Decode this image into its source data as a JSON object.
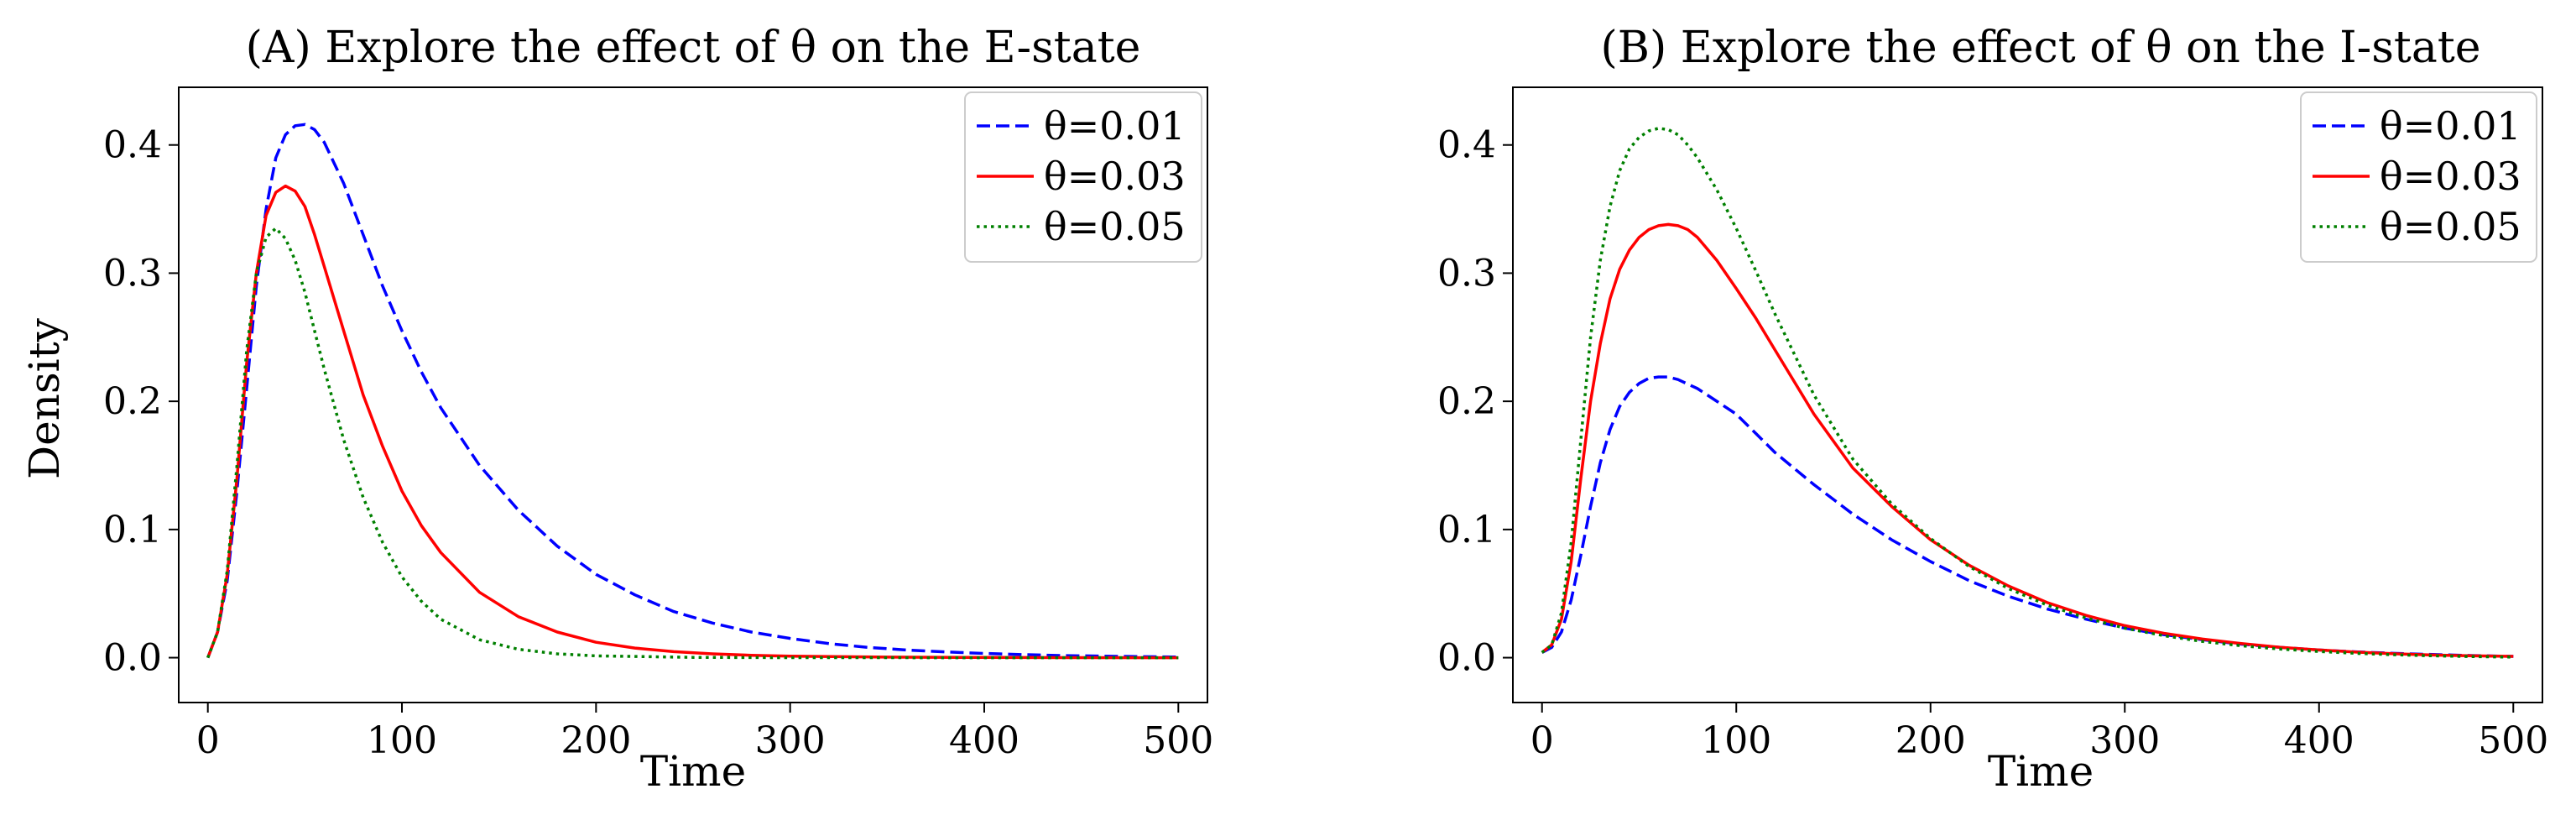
{
  "chart_data": [
    {
      "type": "line",
      "title": "(A) Explore the effect of θ on the E-state",
      "xlabel": "Time",
      "ylabel": "Density",
      "xlim": [
        -15,
        515
      ],
      "ylim": [
        -0.035,
        0.445
      ],
      "xticks": [
        0,
        100,
        200,
        300,
        400,
        500
      ],
      "xtick_labels": [
        "0",
        "100",
        "200",
        "300",
        "400",
        "500"
      ],
      "yticks": [
        0.0,
        0.1,
        0.2,
        0.3,
        0.4
      ],
      "ytick_labels": [
        "0.0",
        "0.1",
        "0.2",
        "0.3",
        "0.4"
      ],
      "legend_position": "top-right",
      "series": [
        {
          "name": "θ=0.01",
          "color": "#0000ff",
          "dash": "dashed",
          "x": [
            0,
            5,
            10,
            15,
            20,
            25,
            30,
            35,
            40,
            45,
            50,
            55,
            60,
            70,
            80,
            90,
            100,
            110,
            120,
            140,
            160,
            180,
            200,
            220,
            240,
            260,
            280,
            300,
            320,
            340,
            360,
            380,
            400,
            420,
            440,
            460,
            480,
            500
          ],
          "y": [
            0.0,
            0.02,
            0.06,
            0.13,
            0.21,
            0.29,
            0.35,
            0.39,
            0.408,
            0.415,
            0.416,
            0.412,
            0.402,
            0.37,
            0.33,
            0.29,
            0.255,
            0.223,
            0.195,
            0.15,
            0.115,
            0.087,
            0.065,
            0.049,
            0.036,
            0.027,
            0.02,
            0.015,
            0.011,
            0.008,
            0.006,
            0.0045,
            0.0033,
            0.0024,
            0.0017,
            0.0012,
            0.0008,
            0.0005
          ]
        },
        {
          "name": "θ=0.03",
          "color": "#ff0000",
          "dash": "solid",
          "x": [
            0,
            5,
            10,
            15,
            20,
            25,
            30,
            35,
            40,
            45,
            50,
            55,
            60,
            70,
            80,
            90,
            100,
            110,
            120,
            140,
            160,
            180,
            200,
            220,
            240,
            260,
            280,
            300,
            350,
            400,
            450,
            500
          ],
          "y": [
            0.0,
            0.02,
            0.065,
            0.14,
            0.23,
            0.3,
            0.345,
            0.363,
            0.368,
            0.364,
            0.352,
            0.33,
            0.305,
            0.255,
            0.205,
            0.165,
            0.13,
            0.103,
            0.082,
            0.051,
            0.032,
            0.02,
            0.012,
            0.0075,
            0.0047,
            0.003,
            0.0019,
            0.0012,
            0.0004,
            0.00015,
            5e-05,
            0.0
          ]
        },
        {
          "name": "θ=0.05",
          "color": "#008000",
          "dash": "dotted",
          "x": [
            0,
            5,
            10,
            15,
            20,
            25,
            30,
            35,
            40,
            45,
            50,
            55,
            60,
            70,
            80,
            90,
            100,
            110,
            120,
            140,
            160,
            180,
            200,
            250,
            300,
            400,
            500
          ],
          "y": [
            0.0,
            0.02,
            0.068,
            0.15,
            0.24,
            0.3,
            0.328,
            0.335,
            0.327,
            0.31,
            0.285,
            0.255,
            0.225,
            0.17,
            0.125,
            0.09,
            0.063,
            0.044,
            0.03,
            0.014,
            0.0065,
            0.003,
            0.0014,
            0.0002,
            3e-05,
            0.0,
            0.0
          ]
        }
      ]
    },
    {
      "type": "line",
      "title": "(B) Explore the effect of θ on the I-state",
      "xlabel": "Time",
      "ylabel": "",
      "xlim": [
        -15,
        515
      ],
      "ylim": [
        -0.035,
        0.445
      ],
      "xticks": [
        0,
        100,
        200,
        300,
        400,
        500
      ],
      "xtick_labels": [
        "0",
        "100",
        "200",
        "300",
        "400",
        "500"
      ],
      "yticks": [
        0.0,
        0.1,
        0.2,
        0.3,
        0.4
      ],
      "ytick_labels": [
        "0.0",
        "0.1",
        "0.2",
        "0.3",
        "0.4"
      ],
      "legend_position": "top-right",
      "series": [
        {
          "name": "θ=0.01",
          "color": "#0000ff",
          "dash": "dashed",
          "x": [
            0,
            5,
            10,
            15,
            20,
            25,
            30,
            35,
            40,
            45,
            50,
            55,
            60,
            65,
            70,
            80,
            90,
            100,
            110,
            120,
            140,
            160,
            180,
            200,
            220,
            240,
            260,
            280,
            300,
            320,
            340,
            360,
            380,
            400,
            420,
            440,
            460,
            480,
            500
          ],
          "y": [
            0.004,
            0.008,
            0.02,
            0.045,
            0.08,
            0.118,
            0.152,
            0.178,
            0.196,
            0.207,
            0.214,
            0.218,
            0.219,
            0.219,
            0.217,
            0.21,
            0.2,
            0.19,
            0.175,
            0.16,
            0.135,
            0.112,
            0.092,
            0.075,
            0.06,
            0.048,
            0.038,
            0.03,
            0.023,
            0.018,
            0.014,
            0.0105,
            0.008,
            0.006,
            0.0045,
            0.0033,
            0.0024,
            0.0016,
            0.001
          ]
        },
        {
          "name": "θ=0.03",
          "color": "#ff0000",
          "dash": "solid",
          "x": [
            0,
            5,
            10,
            15,
            20,
            25,
            30,
            35,
            40,
            45,
            50,
            55,
            60,
            65,
            70,
            75,
            80,
            90,
            100,
            110,
            120,
            140,
            160,
            180,
            200,
            220,
            240,
            260,
            280,
            300,
            320,
            340,
            360,
            380,
            400,
            420,
            440,
            460,
            480,
            500
          ],
          "y": [
            0.004,
            0.01,
            0.03,
            0.075,
            0.14,
            0.2,
            0.245,
            0.28,
            0.303,
            0.318,
            0.328,
            0.334,
            0.337,
            0.338,
            0.337,
            0.334,
            0.328,
            0.31,
            0.288,
            0.265,
            0.24,
            0.19,
            0.148,
            0.118,
            0.092,
            0.072,
            0.056,
            0.043,
            0.033,
            0.025,
            0.019,
            0.0145,
            0.011,
            0.008,
            0.006,
            0.0043,
            0.003,
            0.002,
            0.0014,
            0.001
          ]
        },
        {
          "name": "θ=0.05",
          "color": "#008000",
          "dash": "dotted",
          "x": [
            0,
            5,
            10,
            15,
            20,
            25,
            30,
            35,
            40,
            45,
            50,
            55,
            60,
            65,
            70,
            75,
            80,
            90,
            100,
            110,
            120,
            140,
            160,
            180,
            200,
            220,
            240,
            260,
            280,
            300,
            320,
            340,
            360,
            380,
            400,
            420,
            440,
            460,
            480,
            500
          ],
          "y": [
            0.004,
            0.01,
            0.035,
            0.09,
            0.17,
            0.25,
            0.31,
            0.352,
            0.38,
            0.397,
            0.406,
            0.411,
            0.413,
            0.412,
            0.408,
            0.4,
            0.39,
            0.365,
            0.335,
            0.302,
            0.268,
            0.205,
            0.155,
            0.12,
            0.093,
            0.071,
            0.054,
            0.041,
            0.031,
            0.023,
            0.0172,
            0.0127,
            0.0093,
            0.0067,
            0.0048,
            0.0033,
            0.0022,
            0.0014,
            0.0008,
            0.0004
          ]
        }
      ]
    }
  ]
}
